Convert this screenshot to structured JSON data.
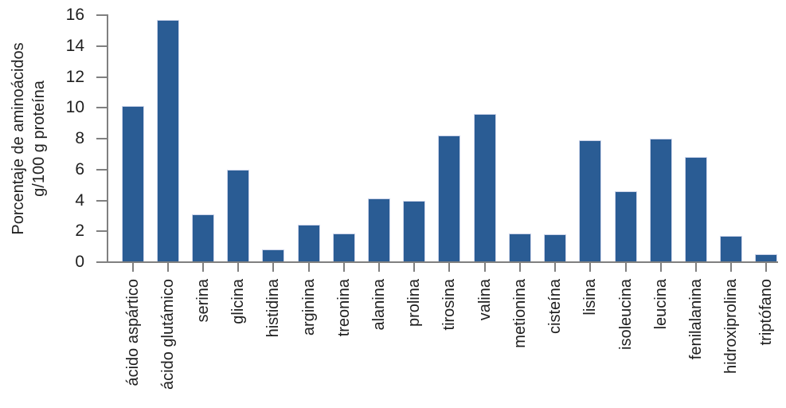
{
  "chart_data": {
    "type": "bar",
    "title": "",
    "ylabel_line1": "Porcentaje de aminoácidos",
    "ylabel_line2": "g/100 g proteína",
    "xlabel": "",
    "categories": [
      "ácido aspártico",
      "ácido glutámico",
      "serina",
      "glicina",
      "histidina",
      "arginina",
      "treonina",
      "alanina",
      "prolina",
      "tirosina",
      "valina",
      "metionina",
      "cisteína",
      "lisina",
      "isoleucina",
      "leucina",
      "fenilalanina",
      "hidroxiprolina",
      "triptófano"
    ],
    "values": [
      10.1,
      15.7,
      3.1,
      6.0,
      0.85,
      2.45,
      1.85,
      4.15,
      3.95,
      8.2,
      9.6,
      1.85,
      1.8,
      7.9,
      4.6,
      8.0,
      6.8,
      1.7,
      0.5
    ],
    "ylim": [
      0,
      16
    ],
    "yticks": [
      0,
      2,
      4,
      6,
      8,
      10,
      12,
      14,
      16
    ],
    "grid": false,
    "legend": "none",
    "colors": {
      "bar_fill": "#2a5c94",
      "bar_edge": "#ccd4ea",
      "axis": "#808080",
      "text": "#1f1f1f"
    }
  }
}
